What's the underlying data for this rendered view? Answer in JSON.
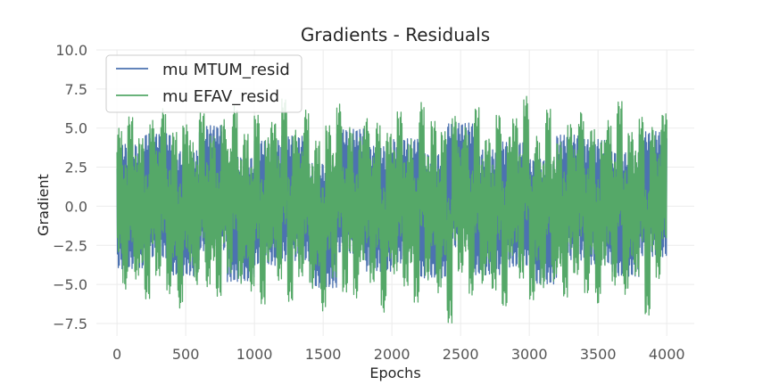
{
  "chart_data": {
    "type": "line",
    "title": "Gradients - Residuals",
    "xlabel": "Epochs",
    "ylabel": "Gradient",
    "xlim": [
      -150,
      4200
    ],
    "ylim": [
      -8.3,
      10.0
    ],
    "xticks": [
      0,
      500,
      1000,
      1500,
      2000,
      2500,
      3000,
      3500,
      4000
    ],
    "xtick_labels": [
      "0",
      "500",
      "1000",
      "1500",
      "2000",
      "2500",
      "3000",
      "3500",
      "4000"
    ],
    "yticks": [
      -7.5,
      -5.0,
      -2.5,
      0.0,
      2.5,
      5.0,
      7.5,
      10.0
    ],
    "ytick_labels": [
      "−7.5",
      "−5.0",
      "−2.5",
      "0.0",
      "2.5",
      "5.0",
      "7.5",
      "10.0"
    ],
    "grid": true,
    "legend_position": "top-left",
    "series": [
      {
        "name": "mu MTUM_resid",
        "color": "#4c72b0",
        "x_range": [
          0,
          4000
        ],
        "values": [
          0.0,
          1.2,
          -0.8,
          2.1,
          -1.5,
          0.4,
          0.9,
          -2.2,
          1.7,
          -0.3,
          0.6,
          -1.1,
          2.4,
          -0.7,
          0.2,
          -1.8,
          1.0,
          0.5,
          -0.9,
          1.4
        ]
      },
      {
        "name": "mu EFAV_resid",
        "color": "#55a868",
        "x_range": [
          0,
          4000
        ],
        "values": [
          1.8,
          -2.4,
          3.1,
          -1.2,
          0.6,
          -3.5,
          2.7,
          -0.8,
          4.1,
          -2.9,
          1.3,
          -4.6,
          2.2,
          0.4,
          -1.9,
          3.6,
          -2.1,
          0.9,
          -3.2,
          2.8,
          -0.5,
          4.4,
          -1.7,
          1.1,
          -2.6,
          3.3,
          -4.1,
          0.7,
          2.5,
          -1.4,
          5.2,
          -3.8,
          1.6,
          -0.9,
          3.9,
          -2.3,
          0.3,
          -4.9,
          2.1,
          -1.0,
          4.6,
          -2.7,
          1.9,
          -3.4,
          0.8,
          3.0,
          -1.6,
          2.4,
          -5.1,
          1.2,
          -0.6,
          3.7,
          -2.0,
          0.5,
          -3.9,
          4.8,
          -1.3,
          2.6,
          -2.8,
          1.4,
          -6.3,
          3.2,
          -0.4,
          2.0,
          -3.1,
          4.2,
          -1.8,
          0.6,
          -2.5,
          3.4,
          -4.4,
          1.0,
          2.9,
          -1.1,
          5.5,
          -3.6,
          0.9,
          -2.2,
          4.0,
          -1.5,
          0.2,
          -3.3,
          2.3,
          -0.7,
          3.8,
          -2.9,
          1.7,
          -4.2,
          0.4,
          2.7,
          -1.9,
          4.9,
          -3.0,
          1.3,
          -0.8,
          3.1,
          -5.4,
          2.0,
          -1.2,
          3.5
        ]
      }
    ]
  }
}
